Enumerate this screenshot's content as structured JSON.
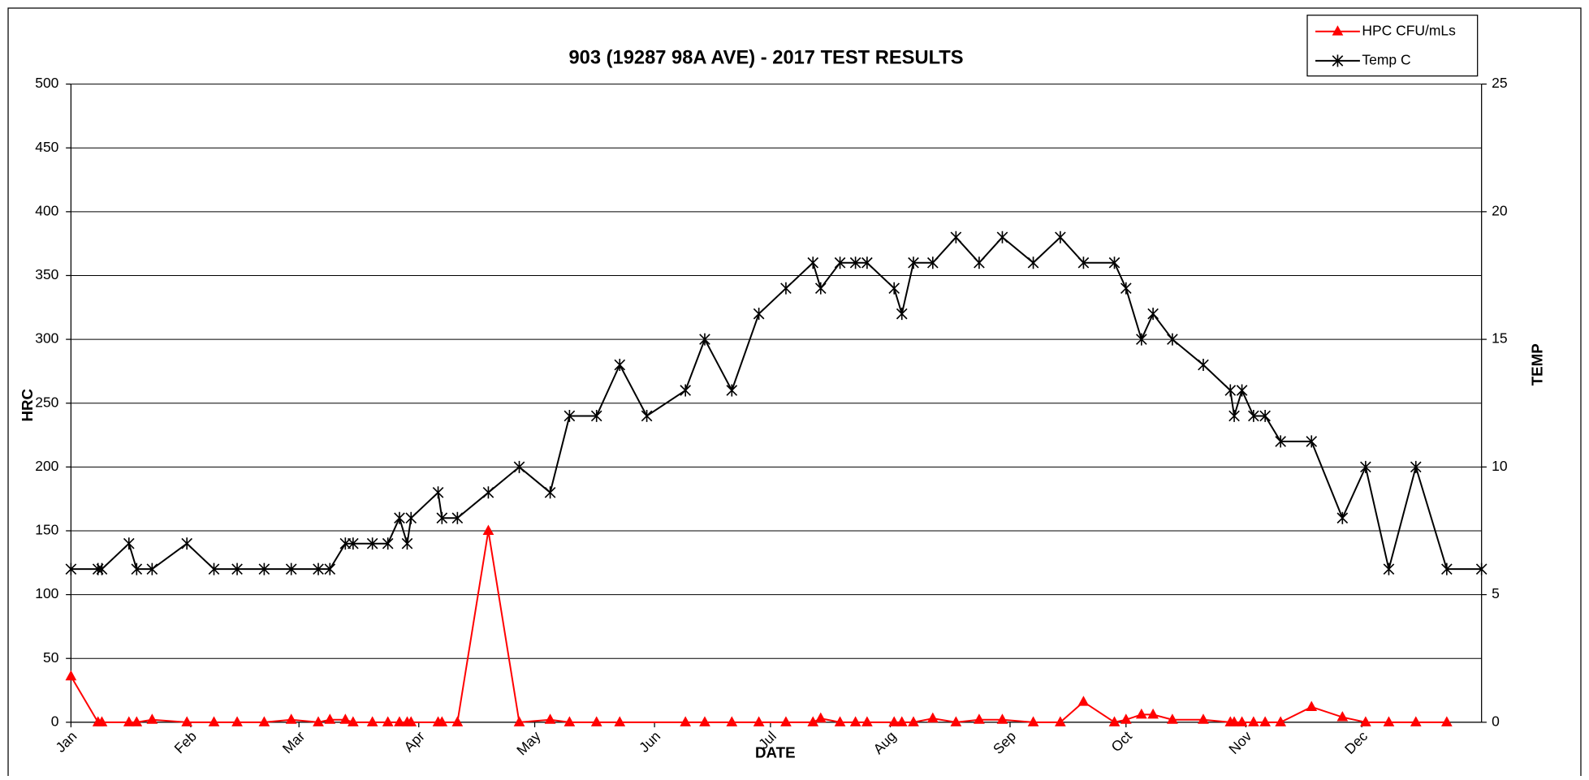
{
  "chart_data": {
    "type": "line",
    "title": "903 (19287 98A AVE) - 2017 TEST RESULTS",
    "x_label": "DATE",
    "y_label": "HRC",
    "y2_label": "TEMP",
    "xlim": [
      0,
      365
    ],
    "xticks": [
      {
        "value": 0,
        "label": "Jan"
      },
      {
        "value": 31,
        "label": "Feb"
      },
      {
        "value": 59,
        "label": "Mar"
      },
      {
        "value": 90,
        "label": "Apr"
      },
      {
        "value": 120,
        "label": "May"
      },
      {
        "value": 151,
        "label": "Jun"
      },
      {
        "value": 181,
        "label": "Jul"
      },
      {
        "value": 212,
        "label": "Aug"
      },
      {
        "value": 243,
        "label": "Sep"
      },
      {
        "value": 273,
        "label": "Oct"
      },
      {
        "value": 304,
        "label": "Nov"
      },
      {
        "value": 334,
        "label": "Dec"
      }
    ],
    "ylim": [
      0,
      500
    ],
    "yticks": [
      0,
      50,
      100,
      150,
      200,
      250,
      300,
      350,
      400,
      450,
      500
    ],
    "y2lim": [
      0,
      25
    ],
    "y2ticks": [
      0,
      5,
      10,
      15,
      20,
      25
    ],
    "grid": true,
    "legend": "top-right",
    "series": [
      {
        "name": "HPC CFU/mLs",
        "color": "#ff0000",
        "marker": "triangle",
        "x": [
          0,
          7,
          8,
          15,
          17,
          21,
          30,
          37,
          43,
          50,
          57,
          64,
          67,
          71,
          73,
          78,
          82,
          85,
          87,
          88,
          95,
          96,
          100,
          108,
          116,
          124,
          129,
          136,
          142,
          159,
          164,
          171,
          178,
          185,
          192,
          194,
          199,
          203,
          206,
          213,
          215,
          218,
          223,
          229,
          235,
          241,
          249,
          256,
          262,
          270,
          273,
          277,
          280,
          285,
          293,
          300,
          301,
          303,
          306,
          309,
          313,
          321,
          329,
          335,
          341,
          348,
          356
        ],
        "values": [
          36,
          0,
          0,
          0,
          0,
          2,
          0,
          0,
          0,
          0,
          2,
          0,
          2,
          2,
          0,
          0,
          0,
          0,
          0,
          0,
          0,
          0,
          0,
          150,
          0,
          2,
          0,
          0,
          0,
          0,
          0,
          0,
          0,
          0,
          0,
          3,
          0,
          0,
          0,
          0,
          0,
          0,
          3,
          0,
          2,
          2,
          0,
          0,
          16,
          0,
          2,
          6,
          6,
          2,
          2,
          0,
          0,
          0,
          0,
          0,
          0,
          12,
          4,
          0,
          0,
          0,
          0
        ]
      },
      {
        "name": "Temp C",
        "color": "#000000",
        "marker": "asterisk",
        "axis": "y2",
        "x": [
          0,
          7,
          8,
          15,
          17,
          21,
          30,
          37,
          43,
          50,
          57,
          64,
          67,
          71,
          73,
          78,
          82,
          85,
          87,
          88,
          95,
          96,
          100,
          108,
          116,
          124,
          129,
          136,
          142,
          149,
          159,
          164,
          171,
          178,
          185,
          192,
          194,
          199,
          203,
          206,
          213,
          215,
          218,
          223,
          229,
          235,
          241,
          249,
          256,
          262,
          270,
          273,
          277,
          280,
          285,
          293,
          300,
          301,
          303,
          306,
          309,
          313,
          321,
          329,
          335,
          341,
          348,
          356,
          365
        ],
        "values": [
          6,
          6,
          6,
          7,
          6,
          6,
          7,
          6,
          6,
          6,
          6,
          6,
          6,
          7,
          7,
          7,
          7,
          8,
          7,
          8,
          9,
          8,
          8,
          9,
          10,
          9,
          12,
          12,
          14,
          12,
          13,
          15,
          13,
          16,
          17,
          18,
          17,
          18,
          18,
          18,
          17,
          16,
          18,
          18,
          19,
          18,
          19,
          18,
          19,
          18,
          18,
          17,
          15,
          16,
          15,
          14,
          13,
          12,
          13,
          12,
          12,
          11,
          11,
          8,
          10,
          6,
          10,
          6,
          6
        ]
      }
    ]
  }
}
